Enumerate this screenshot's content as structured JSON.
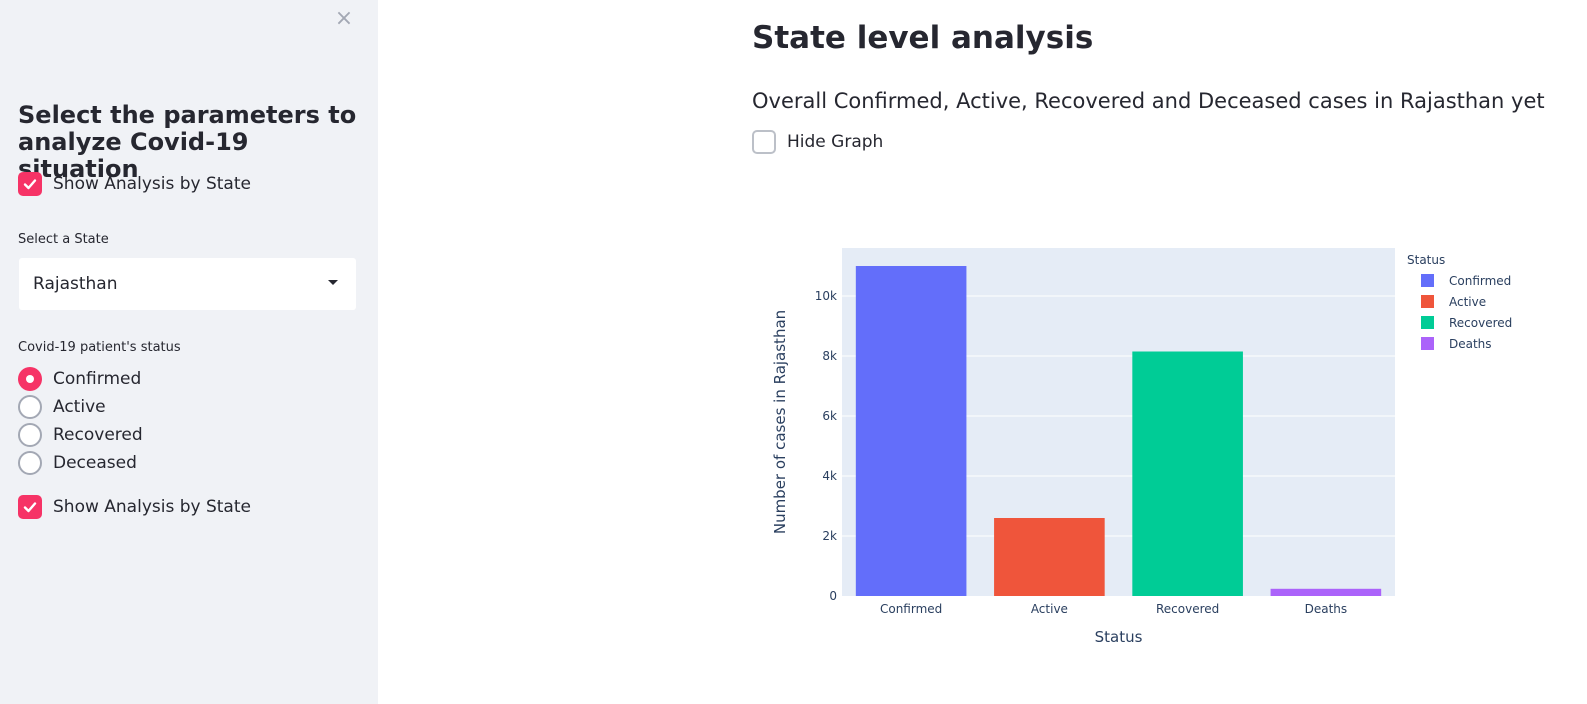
{
  "sidebar": {
    "close_icon": "×",
    "title": "Select the parameters to analyze Covid-19 situation",
    "show_analysis_1": "Show Analysis by State",
    "select_state_label": "Select a State",
    "selected_state": "Rajasthan",
    "status_label": "Covid-19 patient's status",
    "radio_options": [
      "Confirmed",
      "Active",
      "Recovered",
      "Deceased"
    ],
    "selected_radio": "Confirmed",
    "show_analysis_2": "Show Analysis by State"
  },
  "main": {
    "title": "State level analysis",
    "subtitle": "Overall Confirmed, Active, Recovered and Deceased cases in Rajasthan yet",
    "hide_graph_label": "Hide Graph"
  },
  "colors": {
    "accent": "#f63366",
    "confirmed": "#636efa",
    "active": "#ef553b",
    "recovered": "#00cc96",
    "deaths": "#ab63fa",
    "plot_bg": "#e5ecf6"
  },
  "chart_data": {
    "type": "bar",
    "categories": [
      "Confirmed",
      "Active",
      "Recovered",
      "Deaths"
    ],
    "values": [
      11000,
      2600,
      8150,
      240
    ],
    "series_colors": [
      "#636efa",
      "#ef553b",
      "#00cc96",
      "#ab63fa"
    ],
    "xlabel": "Status",
    "ylabel": "Number of cases in Rajasthan",
    "ylim": [
      0,
      11600
    ],
    "yticks": [
      0,
      2000,
      4000,
      6000,
      8000,
      10000
    ],
    "ytick_labels": [
      "0",
      "2k",
      "4k",
      "6k",
      "8k",
      "10k"
    ],
    "legend_title": "Status",
    "legend_entries": [
      "Confirmed",
      "Active",
      "Recovered",
      "Deaths"
    ],
    "legend_position": "top-right",
    "grid": true
  }
}
